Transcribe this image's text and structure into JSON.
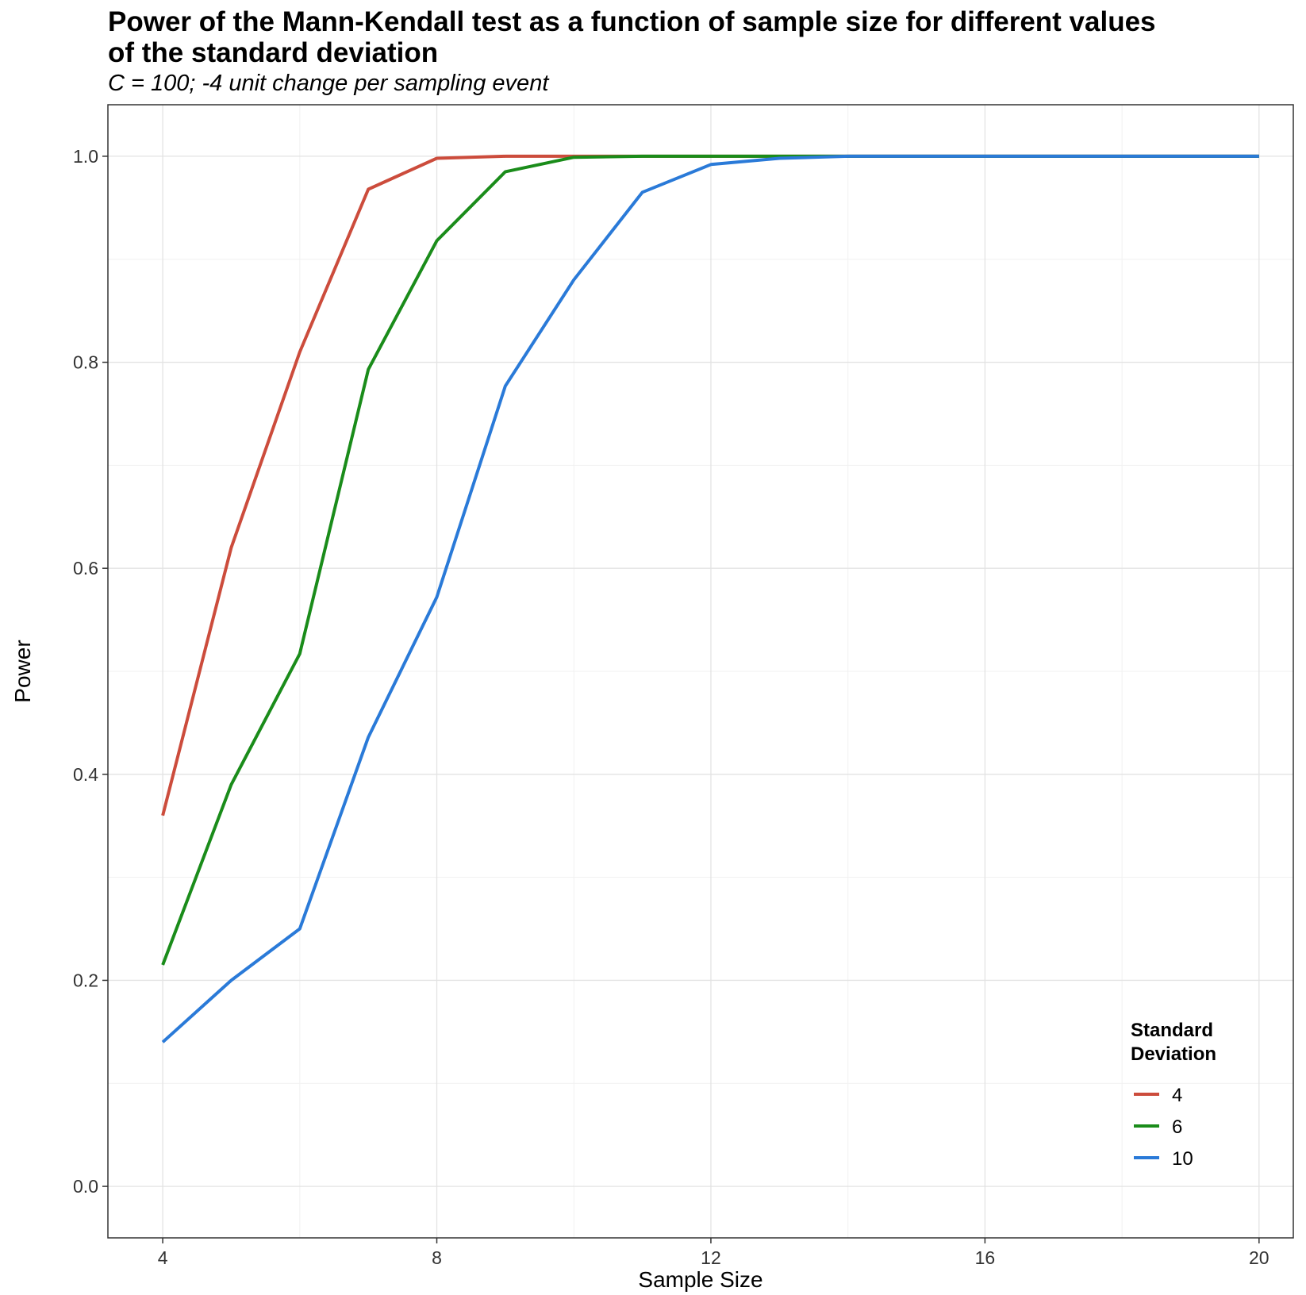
{
  "chart_data": {
    "type": "line",
    "title": "Power of the Mann-Kendall test as a function of sample size for different values of the standard deviation",
    "subtitle": "C = 100; -4 unit change per sampling event",
    "xlabel": "Sample Size",
    "ylabel": "Power",
    "xlim": [
      3.2,
      20.5
    ],
    "ylim": [
      -0.05,
      1.05
    ],
    "x_ticks": [
      4,
      8,
      12,
      16,
      20
    ],
    "x_tick_labels": [
      "4",
      "8",
      "12",
      "16",
      "20"
    ],
    "y_ticks": [
      0.0,
      0.2,
      0.4,
      0.6,
      0.8,
      1.0
    ],
    "y_tick_labels": [
      "0.0",
      "0.2",
      "0.4",
      "0.6",
      "0.8",
      "1.0"
    ],
    "grid": true,
    "legend": {
      "title": "Standard Deviation",
      "title_lines": [
        "Standard",
        "Deviation"
      ],
      "position": "bottom-right inside"
    },
    "x": [
      4,
      5,
      6,
      7,
      8,
      9,
      10,
      11,
      12,
      13,
      14,
      15,
      16,
      17,
      18,
      19,
      20
    ],
    "series": [
      {
        "name": "4",
        "color": "#cc4c3c",
        "values": [
          0.36,
          0.62,
          0.81,
          0.968,
          0.998,
          1.0,
          1.0,
          1.0,
          1.0,
          1.0,
          1.0,
          1.0,
          1.0,
          1.0,
          1.0,
          1.0,
          1.0
        ]
      },
      {
        "name": "6",
        "color": "#1a8c1a",
        "values": [
          0.215,
          0.39,
          0.517,
          0.793,
          0.918,
          0.985,
          0.999,
          1.0,
          1.0,
          1.0,
          1.0,
          1.0,
          1.0,
          1.0,
          1.0,
          1.0,
          1.0
        ]
      },
      {
        "name": "10",
        "color": "#2a7ad8",
        "values": [
          0.14,
          0.2,
          0.25,
          0.436,
          0.572,
          0.777,
          0.88,
          0.965,
          0.992,
          0.998,
          1.0,
          1.0,
          1.0,
          1.0,
          1.0,
          1.0,
          1.0
        ]
      }
    ]
  }
}
